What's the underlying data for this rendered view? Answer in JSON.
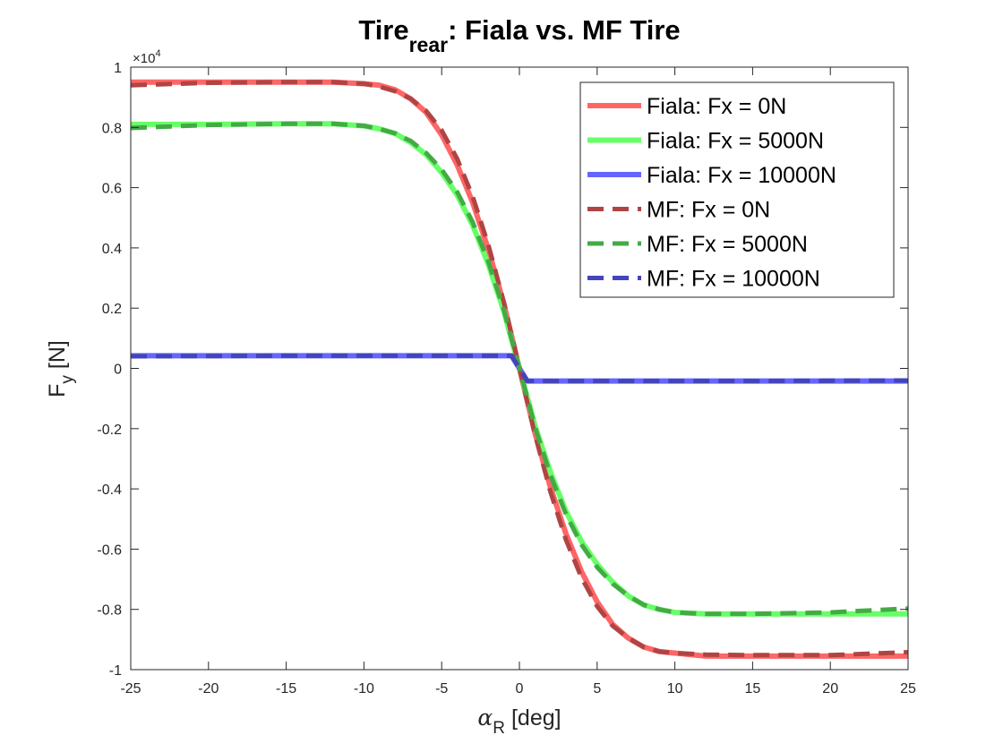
{
  "chart_data": {
    "type": "line",
    "title": {
      "base": "Tire",
      "subscript": "rear",
      "rest": ": Fiala vs. MF Tire"
    },
    "xlabel": {
      "symbol": "α",
      "subscript": "R",
      "rest": " [deg]"
    },
    "ylabel": {
      "base": "F",
      "subscript": "y",
      "rest": " [N]"
    },
    "y_exponent": {
      "base": "×10",
      "power": "4"
    },
    "xlim": [
      -25,
      25
    ],
    "ylim": [
      -10000,
      10000
    ],
    "xticks": [
      "-25",
      "-20",
      "-15",
      "-10",
      "-5",
      "0",
      "5",
      "10",
      "15",
      "20",
      "25"
    ],
    "yticks": [
      "-1",
      "-0.8",
      "-0.6",
      "-0.4",
      "-0.2",
      "0",
      "0.2",
      "0.4",
      "0.6",
      "0.8",
      "1"
    ],
    "grid": false,
    "legend_position": "top-right",
    "series": [
      {
        "name": "Fiala: Fx = 0N",
        "color": "#ff6666",
        "style": "solid",
        "x": [
          -25,
          -20,
          -15,
          -12,
          -10,
          -9,
          -8,
          -7,
          -6,
          -5,
          -4,
          -3,
          -2,
          -1,
          0,
          1,
          2,
          3,
          4,
          5,
          6,
          7,
          8,
          9,
          10,
          12,
          15,
          20,
          25
        ],
        "y": [
          9500,
          9500,
          9500,
          9500,
          9450,
          9400,
          9250,
          8950,
          8500,
          7750,
          6750,
          5500,
          3950,
          2150,
          0,
          -2150,
          -3950,
          -5500,
          -6750,
          -7750,
          -8500,
          -8950,
          -9250,
          -9400,
          -9450,
          -9550,
          -9550,
          -9550,
          -9550
        ]
      },
      {
        "name": "Fiala: Fx = 5000N",
        "color": "#66ff66",
        "style": "solid",
        "x": [
          -25,
          -20,
          -15,
          -12,
          -10,
          -9,
          -8,
          -7,
          -6,
          -5,
          -4,
          -3,
          -2,
          -1,
          0,
          1,
          2,
          3,
          4,
          5,
          6,
          7,
          8,
          9,
          10,
          12,
          15,
          20,
          25
        ],
        "y": [
          8100,
          8100,
          8120,
          8120,
          8050,
          7950,
          7800,
          7500,
          7100,
          6500,
          5750,
          4750,
          3450,
          1900,
          0,
          -1900,
          -3450,
          -4750,
          -5750,
          -6500,
          -7100,
          -7550,
          -7850,
          -8000,
          -8100,
          -8150,
          -8150,
          -8150,
          -8150
        ]
      },
      {
        "name": "Fiala: Fx = 10000N",
        "color": "#6666ff",
        "style": "solid",
        "x": [
          -25,
          -20,
          -15,
          -10,
          -5,
          -2,
          -0.5,
          0,
          0.5,
          2,
          5,
          10,
          15,
          20,
          25
        ],
        "y": [
          420,
          420,
          420,
          420,
          420,
          420,
          420,
          0,
          -420,
          -420,
          -420,
          -420,
          -420,
          -420,
          -420
        ]
      },
      {
        "name": "MF: Fx = 0N",
        "color": "#b04444",
        "style": "dashed",
        "x": [
          -25,
          -20,
          -15,
          -12,
          -10,
          -9,
          -8,
          -7,
          -6,
          -5,
          -4,
          -3,
          -2,
          -1,
          0,
          1,
          2,
          3,
          4,
          5,
          6,
          7,
          8,
          9,
          10,
          12,
          15,
          20,
          25
        ],
        "y": [
          9400,
          9480,
          9500,
          9500,
          9450,
          9350,
          9200,
          8950,
          8550,
          7900,
          6950,
          5700,
          4100,
          2200,
          0,
          -2200,
          -4100,
          -5700,
          -6950,
          -7900,
          -8550,
          -8950,
          -9250,
          -9400,
          -9450,
          -9500,
          -9520,
          -9520,
          -9420
        ]
      },
      {
        "name": "MF: Fx = 5000N",
        "color": "#44aa44",
        "style": "dashed",
        "x": [
          -25,
          -20,
          -15,
          -12,
          -10,
          -9,
          -8,
          -7,
          -6,
          -5,
          -4,
          -3,
          -2,
          -1,
          0,
          1,
          2,
          3,
          4,
          5,
          6,
          7,
          8,
          9,
          10,
          12,
          15,
          20,
          25
        ],
        "y": [
          7980,
          8080,
          8120,
          8120,
          8050,
          7950,
          7800,
          7550,
          7150,
          6600,
          5850,
          4850,
          3550,
          1950,
          0,
          -1950,
          -3550,
          -4850,
          -5850,
          -6600,
          -7150,
          -7550,
          -7850,
          -8000,
          -8100,
          -8150,
          -8150,
          -8100,
          -7970
        ]
      },
      {
        "name": "MF: Fx = 10000N",
        "color": "#4444bb",
        "style": "dashed",
        "x": [
          -25,
          -20,
          -15,
          -10,
          -5,
          -2,
          -0.5,
          0,
          0.5,
          2,
          5,
          10,
          15,
          20,
          25
        ],
        "y": [
          400,
          410,
          420,
          420,
          420,
          420,
          420,
          0,
          -420,
          -420,
          -420,
          -420,
          -420,
          -410,
          -400
        ]
      }
    ]
  }
}
